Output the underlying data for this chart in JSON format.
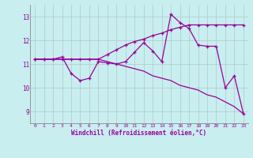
{
  "xlabel": "Windchill (Refroidissement éolien,°C)",
  "background_color": "#c8eef0",
  "line_color": "#990099",
  "grid_color": "#b0c8c8",
  "xlim": [
    -0.5,
    23.5
  ],
  "ylim": [
    8.5,
    13.5
  ],
  "yticks": [
    9,
    10,
    11,
    12,
    13
  ],
  "xticks": [
    0,
    1,
    2,
    3,
    4,
    5,
    6,
    7,
    8,
    9,
    10,
    11,
    12,
    13,
    14,
    15,
    16,
    17,
    18,
    19,
    20,
    21,
    22,
    23
  ],
  "series1_x": [
    0,
    1,
    2,
    3,
    4,
    5,
    6,
    7,
    8,
    9,
    10,
    11,
    12,
    13,
    14,
    15,
    16,
    17,
    18,
    19,
    20,
    21,
    22,
    23
  ],
  "series1_y": [
    11.2,
    11.2,
    11.2,
    11.3,
    10.6,
    10.3,
    10.4,
    11.1,
    11.05,
    11.0,
    11.1,
    11.5,
    11.9,
    11.55,
    11.1,
    13.1,
    12.75,
    12.5,
    11.8,
    11.75,
    11.75,
    10.0,
    10.5,
    8.9
  ],
  "series2_x": [
    0,
    1,
    2,
    3,
    4,
    5,
    6,
    7,
    8,
    9,
    10,
    11,
    12,
    13,
    14,
    15,
    16,
    17,
    18,
    19,
    20,
    21,
    22,
    23
  ],
  "series2_y": [
    11.2,
    11.2,
    11.2,
    11.2,
    11.2,
    11.2,
    11.2,
    11.2,
    11.4,
    11.6,
    11.8,
    11.95,
    12.05,
    12.2,
    12.3,
    12.45,
    12.55,
    12.65,
    12.65,
    12.65,
    12.65,
    12.65,
    12.65,
    12.65
  ],
  "series3_x": [
    0,
    1,
    2,
    3,
    4,
    5,
    6,
    7,
    8,
    9,
    10,
    11,
    12,
    13,
    14,
    15,
    16,
    17,
    18,
    19,
    20,
    21,
    22,
    23
  ],
  "series3_y": [
    11.2,
    11.2,
    11.2,
    11.2,
    11.2,
    11.2,
    11.2,
    11.2,
    11.1,
    11.0,
    10.9,
    10.8,
    10.7,
    10.5,
    10.4,
    10.3,
    10.1,
    10.0,
    9.9,
    9.7,
    9.6,
    9.4,
    9.2,
    8.9
  ]
}
